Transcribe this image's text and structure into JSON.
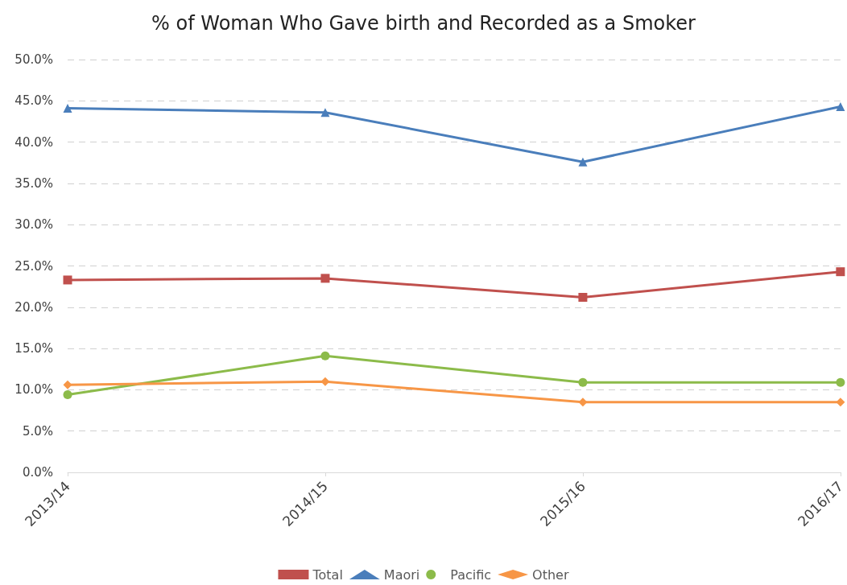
{
  "chart_data": {
    "type": "line",
    "title": "% of Woman Who Gave birth and Recorded as a Smoker",
    "categories": [
      "2013/14",
      "2014/15",
      "2015/16",
      "2016/17"
    ],
    "series": [
      {
        "name": "Total",
        "color": "#c0504d",
        "marker": "square",
        "values": [
          23.3,
          23.5,
          21.2,
          24.3
        ]
      },
      {
        "name": "Maori",
        "color": "#4a7ebb",
        "marker": "triangle",
        "values": [
          44.1,
          43.6,
          37.6,
          44.3
        ]
      },
      {
        "name": "Pacific",
        "color": "#8cbb4a",
        "marker": "circle",
        "values": [
          9.4,
          14.1,
          10.9,
          10.9
        ]
      },
      {
        "name": "Other",
        "color": "#f79646",
        "marker": "diamond",
        "values": [
          10.6,
          11.0,
          8.5,
          8.5
        ]
      }
    ],
    "ylim": [
      0,
      50
    ],
    "yticks": [
      {
        "value": 0,
        "label": "0.0%"
      },
      {
        "value": 5,
        "label": "5.0%"
      },
      {
        "value": 10,
        "label": "10.0%"
      },
      {
        "value": 15,
        "label": "15.0%"
      },
      {
        "value": 20,
        "label": "20.0%"
      },
      {
        "value": 25,
        "label": "25.0%"
      },
      {
        "value": 30,
        "label": "30.0%"
      },
      {
        "value": 35,
        "label": "35.0%"
      },
      {
        "value": 40,
        "label": "40.0%"
      },
      {
        "value": 45,
        "label": "45.0%"
      },
      {
        "value": 50,
        "label": "50.0%"
      }
    ],
    "grid": "y",
    "legend": "bottom",
    "line_style": "solid"
  }
}
